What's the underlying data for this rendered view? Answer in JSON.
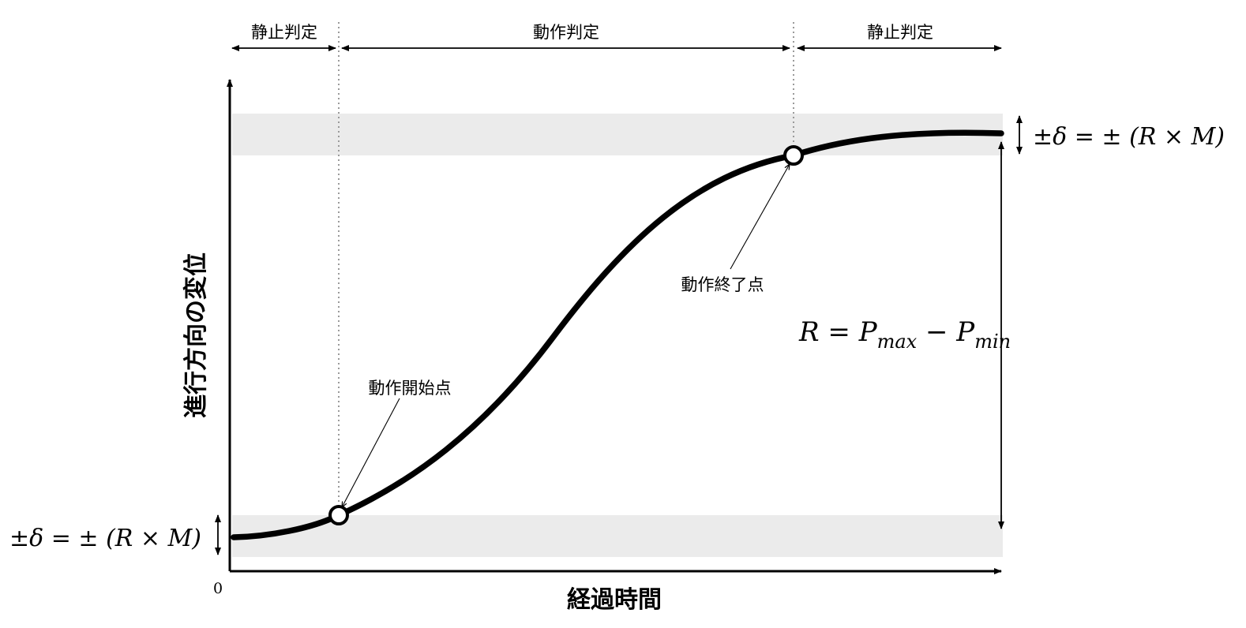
{
  "phases": {
    "left": "静止判定",
    "middle": "動作判定",
    "right": "静止判定"
  },
  "points": {
    "start": "動作開始点",
    "end": "動作終了点"
  },
  "axes": {
    "y_title": "進行方向の変位",
    "x_title": "経過時間",
    "origin": "0"
  },
  "formulas": {
    "tolerance_top": "±δ = ± (R × M)",
    "tolerance_bottom": "±δ = ± (R × M)",
    "range_lhs": "R = P",
    "range_sub1": "max",
    "range_mid": " − P",
    "range_sub2": "min"
  },
  "colors": {
    "band": "#ebebeb",
    "curve": "#000000",
    "guide": "#9a9a9a"
  }
}
